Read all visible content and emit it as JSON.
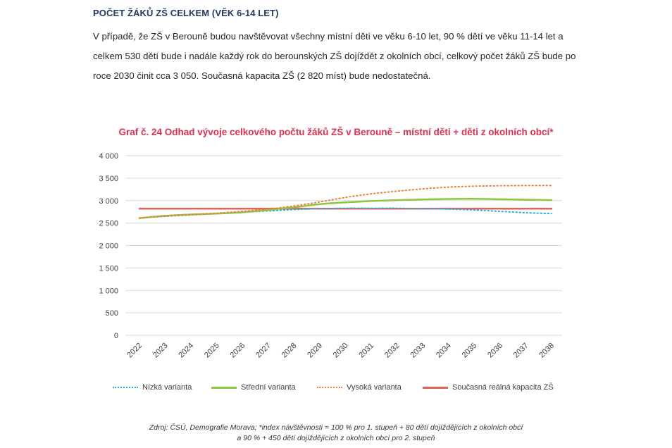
{
  "heading": "POČET ŽÁKŮ ZŠ CELKEM (VĚK 6-14 LET)",
  "paragraph": "V případě, že ZŠ v Berouně budou navštěvovat všechny místní děti ve věku 6-10 let, 90 % dětí ve věku 11-14 let a celkem 530 dětí bude i nadále každý rok do berounských ZŠ dojíždět z okolních obcí, celkový počet žáků ZŠ bude po roce 2030 činit cca 3 050. Současná kapacita ZŠ (2 820 míst) bude nedostatečná.",
  "chart_data": {
    "type": "line",
    "title": "Graf č. 24 Odhad vývoje celkového počtu žáků ZŠ v Berouně – místní děti + děti z okolních obcí*",
    "xlabel": "",
    "ylabel": "",
    "ylim": [
      0,
      4000
    ],
    "yticks": [
      "0",
      "500",
      "1 000",
      "1 500",
      "2 000",
      "2 500",
      "3 000",
      "3 500",
      "4 000"
    ],
    "grid": true,
    "legend_position": "bottom",
    "categories": [
      "2022",
      "2023",
      "2024",
      "2025",
      "2026",
      "2027",
      "2028",
      "2029",
      "2030",
      "2031",
      "2032",
      "2033",
      "2034",
      "2035",
      "2036",
      "2037",
      "2038"
    ],
    "series": [
      {
        "name": "Nízká varianta",
        "color": "#2ab0e0",
        "style": "dotted",
        "values": [
          2610,
          2650,
          2680,
          2710,
          2740,
          2770,
          2800,
          2820,
          2830,
          2830,
          2830,
          2820,
          2810,
          2790,
          2760,
          2730,
          2710
        ]
      },
      {
        "name": "Střední varianta",
        "color": "#8dc63f",
        "style": "solid",
        "values": [
          2610,
          2660,
          2690,
          2710,
          2740,
          2790,
          2850,
          2920,
          2960,
          2990,
          3010,
          3025,
          3035,
          3040,
          3030,
          3020,
          3010
        ]
      },
      {
        "name": "Vysoká varianta",
        "color": "#f07f3c",
        "style": "dotted",
        "values": [
          2610,
          2660,
          2690,
          2720,
          2760,
          2810,
          2880,
          2970,
          3070,
          3150,
          3210,
          3260,
          3300,
          3320,
          3330,
          3335,
          3335
        ]
      },
      {
        "name": "Současná reálná kapacita ZŠ",
        "color": "#e8605a",
        "style": "solid",
        "values": [
          2820,
          2820,
          2820,
          2820,
          2820,
          2820,
          2820,
          2820,
          2820,
          2820,
          2820,
          2820,
          2820,
          2820,
          2820,
          2820,
          2820
        ]
      }
    ]
  },
  "source_note": {
    "line1": "Zdroj: ČSÚ, Demografie Morava; *index návštěvnosti = 100 % pro 1. stupeň + 80 dětí dojíždějících z okolních obcí",
    "line2": "a 90 % +  450 dětí dojíždějících z okolních obcí pro 2. stupeň"
  }
}
